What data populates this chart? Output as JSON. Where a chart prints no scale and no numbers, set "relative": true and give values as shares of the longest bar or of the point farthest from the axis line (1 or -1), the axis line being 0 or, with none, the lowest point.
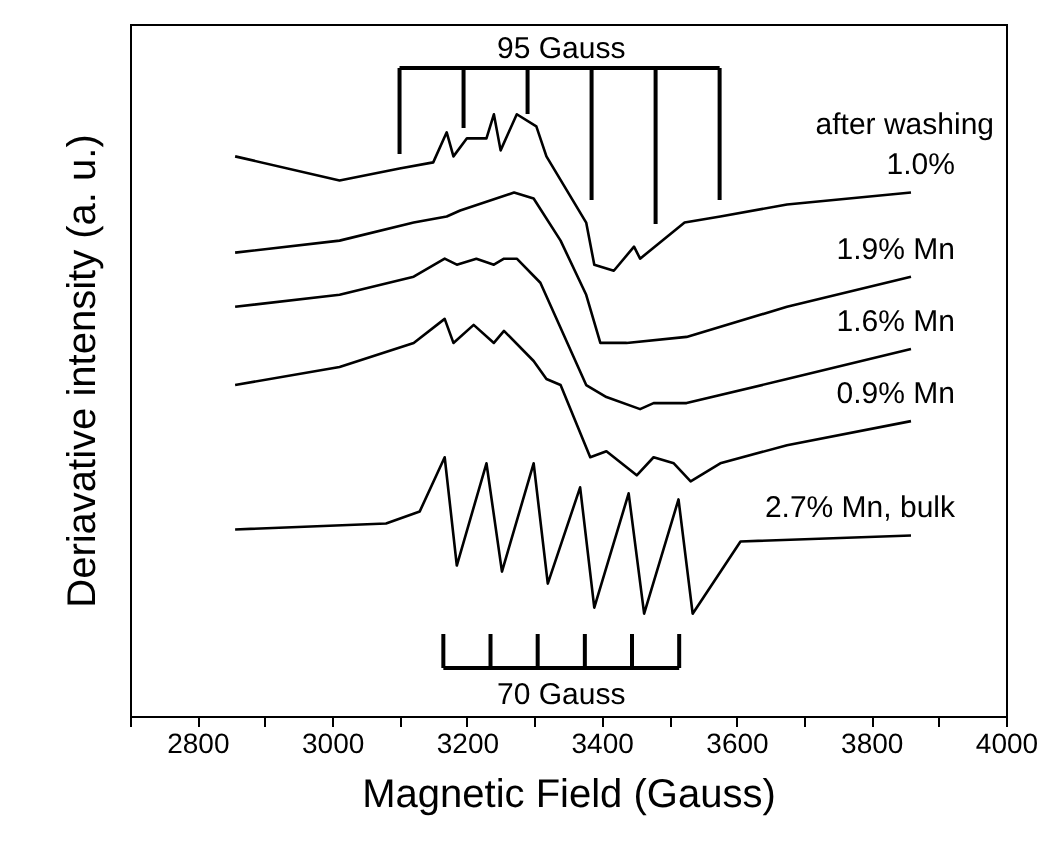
{
  "chart_data": {
    "type": "line",
    "relative": true,
    "xlabel": "Magnetic Field (Gauss)",
    "ylabel": "Deriavative intensity (a. u.)",
    "annotations": [
      "after washing",
      "95 Gauss",
      "70 Gauss"
    ],
    "xlim": [
      2700,
      4000
    ],
    "xticks": [
      {
        "value": 2700,
        "label": null
      },
      2800,
      {
        "value": 2900,
        "label": null
      },
      3000,
      {
        "value": 3100,
        "label": null
      },
      3200,
      {
        "value": 3300,
        "label": null
      },
      3400,
      {
        "value": 3500,
        "label": null
      },
      3600,
      {
        "value": 3700,
        "label": null
      },
      3800,
      {
        "value": 3900,
        "label": null
      },
      4000
    ],
    "legend": false,
    "grid": false,
    "marker": "none",
    "line_style": "solid",
    "series": [
      {
        "name": "1.0%",
        "color": "#000000",
        "x": [
          2856,
          3011,
          3100,
          3150,
          3170,
          3180,
          3200,
          3229,
          3240,
          3250,
          3274,
          3303,
          3318,
          3377,
          3389,
          3418,
          3448,
          3457,
          3523,
          3576,
          3675,
          3859
        ],
        "values": [
          0.93,
          0.89,
          0.91,
          0.92,
          0.97,
          0.93,
          0.96,
          0.96,
          1.0,
          0.94,
          1.0,
          0.98,
          0.93,
          0.82,
          0.75,
          0.74,
          0.78,
          0.76,
          0.82,
          0.83,
          0.85,
          0.87
        ]
      },
      {
        "name": "1.9% Mn",
        "color": "#000000",
        "x": [
          2856,
          3011,
          3121,
          3170,
          3190,
          3270,
          3299,
          3339,
          3377,
          3398,
          3437,
          3526,
          3675,
          3859
        ],
        "values": [
          0.77,
          0.79,
          0.82,
          0.83,
          0.84,
          0.87,
          0.86,
          0.79,
          0.7,
          0.62,
          0.62,
          0.63,
          0.68,
          0.73
        ]
      },
      {
        "name": "1.6% Mn",
        "color": "#000000",
        "x": [
          2856,
          3011,
          3121,
          3167,
          3185,
          3214,
          3240,
          3255,
          3274,
          3309,
          3377,
          3407,
          3457,
          3477,
          3526,
          3675,
          3859
        ],
        "values": [
          0.68,
          0.7,
          0.73,
          0.76,
          0.75,
          0.76,
          0.75,
          0.76,
          0.76,
          0.72,
          0.55,
          0.53,
          0.51,
          0.52,
          0.52,
          0.56,
          0.61
        ]
      },
      {
        "name": "0.9% Mn",
        "color": "#000000",
        "x": [
          2856,
          3011,
          3121,
          3167,
          3180,
          3210,
          3240,
          3255,
          3299,
          3318,
          3339,
          3383,
          3407,
          3452,
          3477,
          3507,
          3532,
          3576,
          3675,
          3859
        ],
        "values": [
          0.55,
          0.58,
          0.62,
          0.66,
          0.62,
          0.65,
          0.62,
          0.64,
          0.59,
          0.56,
          0.55,
          0.43,
          0.44,
          0.4,
          0.43,
          0.42,
          0.39,
          0.42,
          0.45,
          0.49
        ]
      },
      {
        "name": "2.7% Mn, bulk",
        "color": "#000000",
        "x": [
          2856,
          3080,
          3130,
          3167,
          3185,
          3229,
          3252,
          3299,
          3320,
          3368,
          3389,
          3440,
          3463,
          3514,
          3535,
          3606,
          3859
        ],
        "values": [
          0.31,
          0.32,
          0.34,
          0.43,
          0.25,
          0.42,
          0.24,
          0.42,
          0.22,
          0.38,
          0.18,
          0.37,
          0.17,
          0.36,
          0.17,
          0.29,
          0.3
        ]
      }
    ]
  }
}
